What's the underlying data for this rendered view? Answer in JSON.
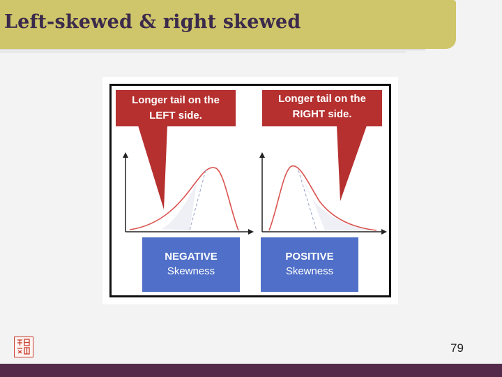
{
  "slide": {
    "title": "Left-skewed & right skewed",
    "page_number": "79"
  },
  "figure": {
    "left": {
      "callout_line1": "Longer tail on the",
      "callout_line2": "LEFT side.",
      "label_title": "NEGATIVE",
      "label_sub": "Skewness"
    },
    "right": {
      "callout_line1": "Longer tail on the",
      "callout_line2": "RIGHT side.",
      "label_title": "POSITIVE",
      "label_sub": "Skewness"
    }
  },
  "colors": {
    "title_bar": "#cfc56a",
    "callout": "#b5302f",
    "panel": "#4f6fc8",
    "curve": "#d9534f",
    "bottom_bar": "#55294a"
  },
  "icons": [
    "university-seal-logo",
    "y-axis-arrow-icon",
    "x-axis-arrow-icon"
  ]
}
